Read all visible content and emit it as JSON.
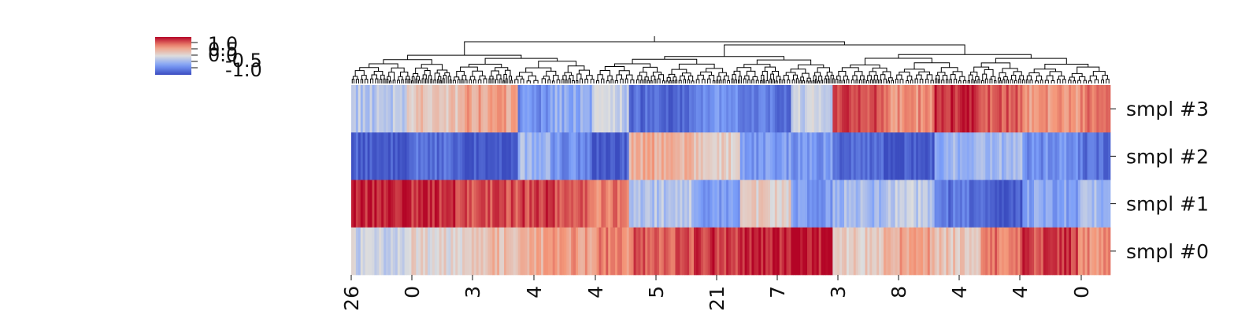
{
  "chart_data": {
    "type": "heatmap",
    "title": "",
    "xlabel": "",
    "ylabel": "",
    "row_labels": [
      "smpl #3",
      "smpl #2",
      "smpl #1",
      "smpl #0"
    ],
    "x_tick_labels": [
      "26",
      "0",
      "3",
      "4",
      "4",
      "5",
      "21",
      "7",
      "3",
      "8",
      "4",
      "4",
      "0"
    ],
    "colorbar": {
      "colormap": "coolwarm",
      "range": [
        -1.0,
        1.0
      ],
      "tick_labels": [
        "1.0",
        "0.5",
        "0.0",
        "-0.5",
        "-1.0"
      ]
    },
    "column_groups": [
      {
        "columns": 24,
        "values": [
          -0.2,
          -0.9,
          0.9,
          -0.1
        ]
      },
      {
        "columns": 24,
        "values": [
          0.2,
          -0.8,
          0.85,
          0.05
        ]
      },
      {
        "columns": 24,
        "values": [
          0.4,
          -0.95,
          0.75,
          0.25
        ]
      },
      {
        "columns": 14,
        "values": [
          -0.6,
          -0.3,
          0.8,
          0.35
        ]
      },
      {
        "columns": 18,
        "values": [
          -0.4,
          -0.6,
          0.75,
          0.45
        ]
      },
      {
        "columns": 16,
        "values": [
          -0.15,
          -0.9,
          0.6,
          0.55
        ]
      },
      {
        "columns": 28,
        "values": [
          -0.8,
          0.35,
          -0.2,
          0.7
        ]
      },
      {
        "columns": 20,
        "values": [
          -0.55,
          0.15,
          -0.5,
          0.85
        ]
      },
      {
        "columns": 22,
        "values": [
          -0.75,
          -0.5,
          0.1,
          0.9
        ]
      },
      {
        "columns": 18,
        "values": [
          -0.1,
          -0.55,
          -0.5,
          0.95
        ]
      },
      {
        "columns": 22,
        "values": [
          0.8,
          -0.85,
          -0.3,
          0.1
        ]
      },
      {
        "columns": 22,
        "values": [
          0.5,
          -0.95,
          -0.15,
          0.4
        ]
      },
      {
        "columns": 20,
        "values": [
          0.9,
          -0.35,
          -0.75,
          0.2
        ]
      },
      {
        "columns": 18,
        "values": [
          0.75,
          -0.3,
          -0.9,
          0.6
        ]
      },
      {
        "columns": 24,
        "values": [
          0.45,
          -0.6,
          -0.45,
          0.8
        ]
      },
      {
        "columns": 14,
        "values": [
          0.6,
          -0.75,
          -0.3,
          0.5
        ]
      }
    ]
  }
}
